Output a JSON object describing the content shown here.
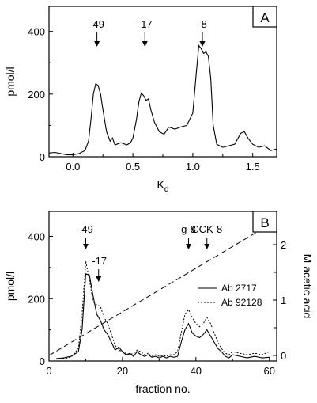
{
  "chart_data": [
    {
      "panel": "A",
      "type": "line",
      "xlabel": "K",
      "xlabel_sub": "d",
      "ylabel": "pmol/l",
      "xlim": [
        -0.2,
        1.7
      ],
      "ylim": [
        0,
        480
      ],
      "xticks": [
        0.0,
        0.5,
        1.0,
        1.5
      ],
      "xtick_labels": [
        "0.0",
        "0.5",
        "1.0",
        "1.5"
      ],
      "yticks": [
        0,
        200,
        400
      ],
      "ytick_labels": [
        "0",
        "200",
        "400"
      ],
      "series": [
        {
          "style": "solid",
          "points": [
            [
              -0.2,
              12
            ],
            [
              -0.15,
              14
            ],
            [
              -0.1,
              10
            ],
            [
              -0.05,
              6
            ],
            [
              0.0,
              6
            ],
            [
              0.05,
              10
            ],
            [
              0.1,
              20
            ],
            [
              0.13,
              50
            ],
            [
              0.15,
              120
            ],
            [
              0.17,
              200
            ],
            [
              0.19,
              233
            ],
            [
              0.21,
              228
            ],
            [
              0.23,
              200
            ],
            [
              0.25,
              150
            ],
            [
              0.28,
              80
            ],
            [
              0.31,
              50
            ],
            [
              0.33,
              60
            ],
            [
              0.35,
              38
            ],
            [
              0.4,
              45
            ],
            [
              0.45,
              38
            ],
            [
              0.48,
              45
            ],
            [
              0.5,
              60
            ],
            [
              0.53,
              120
            ],
            [
              0.55,
              175
            ],
            [
              0.57,
              203
            ],
            [
              0.59,
              195
            ],
            [
              0.61,
              180
            ],
            [
              0.63,
              185
            ],
            [
              0.65,
              150
            ],
            [
              0.68,
              110
            ],
            [
              0.72,
              80
            ],
            [
              0.76,
              72
            ],
            [
              0.8,
              95
            ],
            [
              0.85,
              88
            ],
            [
              0.9,
              95
            ],
            [
              0.95,
              100
            ],
            [
              1.0,
              140
            ],
            [
              1.03,
              270
            ],
            [
              1.05,
              355
            ],
            [
              1.07,
              345
            ],
            [
              1.09,
              330
            ],
            [
              1.11,
              335
            ],
            [
              1.13,
              320
            ],
            [
              1.15,
              250
            ],
            [
              1.17,
              100
            ],
            [
              1.2,
              40
            ],
            [
              1.25,
              30
            ],
            [
              1.3,
              35
            ],
            [
              1.35,
              40
            ],
            [
              1.4,
              75
            ],
            [
              1.43,
              80
            ],
            [
              1.46,
              60
            ],
            [
              1.5,
              40
            ],
            [
              1.55,
              30
            ],
            [
              1.6,
              35
            ],
            [
              1.65,
              20
            ],
            [
              1.7,
              25
            ]
          ]
        }
      ],
      "annotations": [
        {
          "text": "-49",
          "x": 0.2
        },
        {
          "text": "-17",
          "x": 0.6
        },
        {
          "text": "-8",
          "x": 1.08
        }
      ]
    },
    {
      "panel": "B",
      "type": "line",
      "xlabel": "fraction no.",
      "ylabel": "pmol/l",
      "y2label": "M acetic acid",
      "xlim": [
        0,
        62
      ],
      "ylim": [
        0,
        480
      ],
      "y2lim": [
        -0.1,
        2.6
      ],
      "xticks": [
        0,
        20,
        40,
        60
      ],
      "xtick_labels": [
        "0",
        "20",
        "40",
        "60"
      ],
      "yticks": [
        0,
        200,
        400
      ],
      "ytick_labels": [
        "0",
        "200",
        "400"
      ],
      "y2ticks": [
        0,
        1,
        2
      ],
      "y2tick_labels": [
        "0",
        "1",
        "2"
      ],
      "legend": {
        "position": "right",
        "entries": [
          "Ab 2717",
          "Ab 92128"
        ]
      },
      "series": [
        {
          "name": "Ab 2717",
          "style": "solid",
          "points": [
            [
              2,
              8
            ],
            [
              4,
              10
            ],
            [
              6,
              15
            ],
            [
              8,
              30
            ],
            [
              9,
              100
            ],
            [
              10,
              280
            ],
            [
              11,
              275
            ],
            [
              12,
              210
            ],
            [
              13,
              150
            ],
            [
              14,
              130
            ],
            [
              15,
              100
            ],
            [
              16,
              85
            ],
            [
              17,
              60
            ],
            [
              18,
              35
            ],
            [
              19,
              45
            ],
            [
              20,
              30
            ],
            [
              21,
              20
            ],
            [
              22,
              25
            ],
            [
              23,
              15
            ],
            [
              24,
              30
            ],
            [
              25,
              20
            ],
            [
              26,
              15
            ],
            [
              27,
              20
            ],
            [
              28,
              12
            ],
            [
              29,
              15
            ],
            [
              30,
              10
            ],
            [
              31,
              15
            ],
            [
              32,
              10
            ],
            [
              33,
              15
            ],
            [
              34,
              12
            ],
            [
              35,
              15
            ],
            [
              36,
              60
            ],
            [
              37,
              100
            ],
            [
              38,
              120
            ],
            [
              39,
              90
            ],
            [
              40,
              80
            ],
            [
              41,
              75
            ],
            [
              42,
              85
            ],
            [
              43,
              100
            ],
            [
              44,
              80
            ],
            [
              45,
              60
            ],
            [
              46,
              40
            ],
            [
              47,
              30
            ],
            [
              48,
              15
            ],
            [
              49,
              10
            ],
            [
              50,
              20
            ],
            [
              52,
              15
            ],
            [
              54,
              10
            ],
            [
              56,
              15
            ],
            [
              58,
              10
            ],
            [
              60,
              12
            ]
          ]
        },
        {
          "name": "Ab 92128",
          "style": "dotted",
          "points": [
            [
              2,
              6
            ],
            [
              4,
              8
            ],
            [
              6,
              12
            ],
            [
              8,
              40
            ],
            [
              9,
              150
            ],
            [
              10,
              320
            ],
            [
              11,
              260
            ],
            [
              12,
              190
            ],
            [
              13,
              180
            ],
            [
              14,
              175
            ],
            [
              15,
              140
            ],
            [
              16,
              120
            ],
            [
              17,
              85
            ],
            [
              18,
              50
            ],
            [
              19,
              35
            ],
            [
              20,
              30
            ],
            [
              21,
              25
            ],
            [
              22,
              20
            ],
            [
              23,
              25
            ],
            [
              24,
              35
            ],
            [
              25,
              30
            ],
            [
              26,
              20
            ],
            [
              27,
              25
            ],
            [
              28,
              15
            ],
            [
              29,
              20
            ],
            [
              30,
              15
            ],
            [
              31,
              18
            ],
            [
              32,
              15
            ],
            [
              33,
              20
            ],
            [
              34,
              20
            ],
            [
              35,
              30
            ],
            [
              36,
              90
            ],
            [
              37,
              150
            ],
            [
              38,
              165
            ],
            [
              39,
              140
            ],
            [
              40,
              120
            ],
            [
              41,
              110
            ],
            [
              42,
              120
            ],
            [
              43,
              140
            ],
            [
              44,
              120
            ],
            [
              45,
              90
            ],
            [
              46,
              60
            ],
            [
              47,
              40
            ],
            [
              48,
              25
            ],
            [
              49,
              20
            ],
            [
              50,
              30
            ],
            [
              52,
              25
            ],
            [
              54,
              20
            ],
            [
              56,
              25
            ],
            [
              58,
              20
            ],
            [
              60,
              30
            ]
          ]
        },
        {
          "axis": "y2",
          "style": "dashed",
          "points": [
            [
              0,
              0
            ],
            [
              61,
              2.4
            ]
          ]
        }
      ],
      "annotations": [
        {
          "text": "-49",
          "x": 10
        },
        {
          "text": "-17",
          "x": 12
        },
        {
          "text": "g-8",
          "x": 38
        },
        {
          "text": "CCK-8",
          "x": 43
        }
      ]
    }
  ]
}
